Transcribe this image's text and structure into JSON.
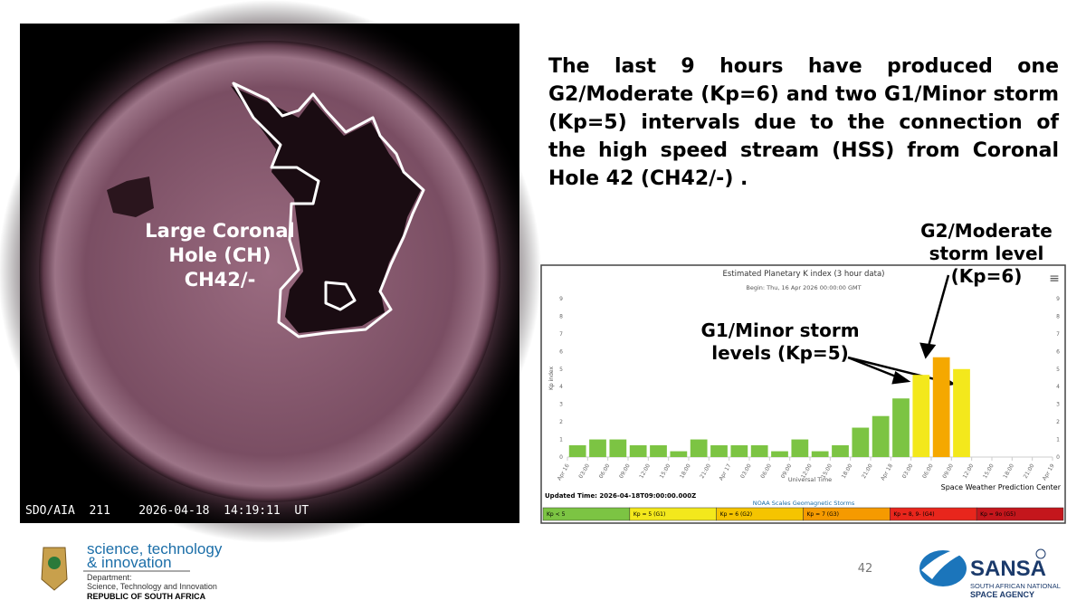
{
  "slide": {
    "paragraph": "The last 9 hours have produced one G2/Moderate (Kp=6) and two G1/Minor storm (Kp=5) intervals due to the connection of the high speed stream (HSS) from Coronal Hole 42 (CH42/-) .",
    "image_caption": "SDO/AIA  211    2026-04-18  14:19:11  UT",
    "image_label": [
      "Large Coronal",
      "Hole (CH)",
      "CH42/-"
    ],
    "page_number": "42",
    "dst_logo": [
      "science, technology",
      "& innovation",
      "Department:",
      "Science, Technology and Innovation",
      "REPUBLIC OF SOUTH AFRICA"
    ],
    "sansa_logo": [
      "SANSA",
      "SOUTH AFRICAN NATIONAL",
      "SPACE AGENCY"
    ]
  },
  "chart_data": {
    "type": "bar",
    "title": "Estimated Planetary K index (3 hour data)",
    "subtitle": "Begin: Thu, 16 Apr 2026 00:00:00 GMT",
    "ylabel": "Kp index",
    "xlabel": "Universal Time",
    "updated": "Updated Time: 2026-04-18T09:00:00.000Z",
    "credit": "Space Weather Prediction Center",
    "menu": "≡",
    "x": [
      0,
      3,
      6,
      9,
      12,
      15,
      18,
      21,
      24,
      27,
      30,
      33,
      36,
      39,
      42,
      45,
      48,
      51,
      54,
      57
    ],
    "values": [
      0.67,
      1,
      1,
      0.67,
      0.67,
      0.33,
      1,
      0.67,
      0.67,
      0.67,
      0.33,
      1,
      0.33,
      0.67,
      1.67,
      2.33,
      3.33,
      4.67,
      5.67,
      5
    ],
    "colors": [
      "#7cc443",
      "#7cc443",
      "#7cc443",
      "#7cc443",
      "#7cc443",
      "#7cc443",
      "#7cc443",
      "#7cc443",
      "#7cc443",
      "#7cc443",
      "#7cc443",
      "#7cc443",
      "#7cc443",
      "#7cc443",
      "#7cc443",
      "#7cc443",
      "#7cc443",
      "#f3e81c",
      "#f5a800",
      "#f3e81c"
    ],
    "xlim": [
      0,
      72
    ],
    "xticks": [
      {
        "value": 0,
        "label": "Apr 16"
      },
      {
        "value": 3,
        "label": "03:00"
      },
      {
        "value": 6,
        "label": "06:00"
      },
      {
        "value": 9,
        "label": "09:00"
      },
      {
        "value": 12,
        "label": "12:00"
      },
      {
        "value": 15,
        "label": "15:00"
      },
      {
        "value": 18,
        "label": "18:00"
      },
      {
        "value": 21,
        "label": "21:00"
      },
      {
        "value": 24,
        "label": "Apr 17"
      },
      {
        "value": 27,
        "label": "03:00"
      },
      {
        "value": 30,
        "label": "06:00"
      },
      {
        "value": 33,
        "label": "09:00"
      },
      {
        "value": 36,
        "label": "12:00"
      },
      {
        "value": 39,
        "label": "15:00"
      },
      {
        "value": 42,
        "label": "18:00"
      },
      {
        "value": 45,
        "label": "21:00"
      },
      {
        "value": 48,
        "label": "Apr 18"
      },
      {
        "value": 51,
        "label": "03:00"
      },
      {
        "value": 54,
        "label": "06:00"
      },
      {
        "value": 57,
        "label": "09:00"
      },
      {
        "value": 60,
        "label": "12:00"
      },
      {
        "value": 63,
        "label": "15:00"
      },
      {
        "value": 66,
        "label": "18:00"
      },
      {
        "value": 69,
        "label": "21:00"
      },
      {
        "value": 72,
        "label": "Apr 19"
      }
    ],
    "ylim": [
      0,
      9
    ],
    "yticks": [
      0,
      1,
      2,
      3,
      4,
      5,
      6,
      7,
      8,
      9
    ],
    "y2lim": [
      0,
      9
    ],
    "y2ticks": [
      0,
      1,
      2,
      3,
      4,
      5,
      6,
      7,
      8,
      9
    ],
    "grid": false,
    "scale_title": "NOAA Scales Geomagnetic Storms",
    "scale": [
      {
        "label": "Kp < 5",
        "color": "#7cc443"
      },
      {
        "label": "Kp = 5 (G1)",
        "color": "#f3e81c"
      },
      {
        "label": "Kp = 6 (G2)",
        "color": "#f5c400"
      },
      {
        "label": "Kp = 7 (G3)",
        "color": "#f59a00"
      },
      {
        "label": "Kp = 8, 9- (G4)",
        "color": "#e8261c"
      },
      {
        "label": "Kp = 9o (G5)",
        "color": "#c4161c"
      }
    ],
    "annotations": [
      {
        "lines": [
          "G2/Moderate",
          "storm level",
          "(Kp=6)"
        ]
      },
      {
        "lines": [
          "G1/Minor storm",
          "levels (Kp=5)"
        ]
      }
    ]
  }
}
